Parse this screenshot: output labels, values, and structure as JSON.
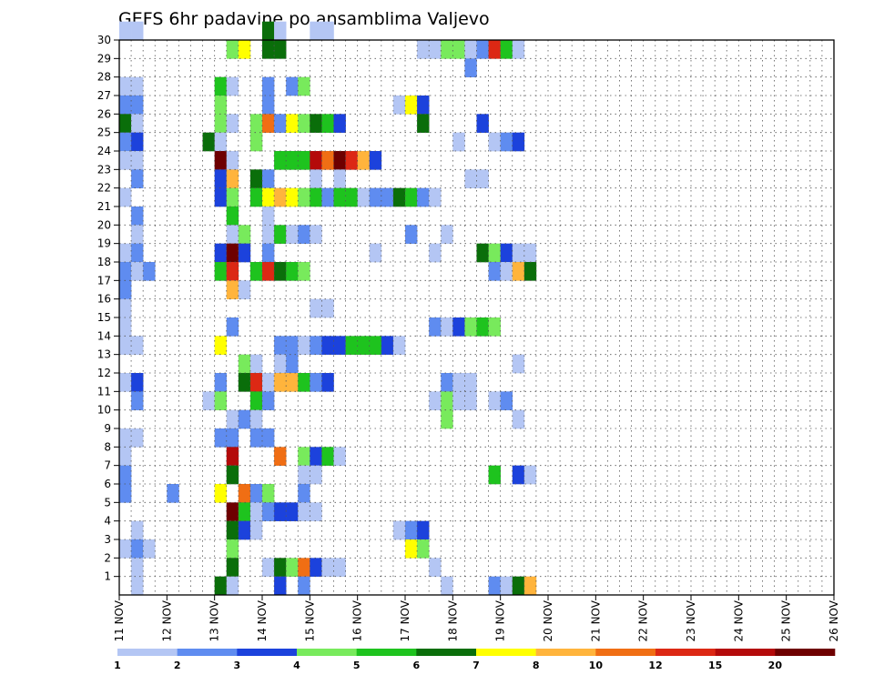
{
  "chart_data": {
    "type": "heatmap",
    "title": "GEFS 6hr padavine po ansamblima Valjevo",
    "xlabel": "",
    "ylabel": "",
    "x_tick_labels": [
      "11 NOV",
      "12 NOV",
      "13 NOV",
      "14 NOV",
      "15 NOV",
      "16 NOV",
      "17 NOV",
      "18 NOV",
      "19 NOV",
      "20 NOV",
      "21 NOV",
      "22 NOV",
      "23 NOV",
      "24 NOV",
      "25 NOV",
      "26 NOV"
    ],
    "y_tick_labels": [
      "1",
      "2",
      "3",
      "4",
      "5",
      "6",
      "7",
      "8",
      "9",
      "10",
      "11",
      "12",
      "13",
      "14",
      "15",
      "16",
      "17",
      "18",
      "19",
      "20",
      "21",
      "22",
      "23",
      "24",
      "25",
      "26",
      "27",
      "28",
      "29",
      "30"
    ],
    "ylim": [
      0,
      30
    ],
    "time_step": "6hr",
    "grid": true,
    "colorbar": {
      "levels": [
        "1",
        "2",
        "3",
        "4",
        "5",
        "6",
        "7",
        "8",
        "10",
        "12",
        "15",
        "20"
      ],
      "colors": [
        "#b4c6f4",
        "#5f8cf0",
        "#1c42dc",
        "#78ea5c",
        "#1ec31e",
        "#0a6e0a",
        "#ffff00",
        "#ffb43c",
        "#f06e14",
        "#dc2814",
        "#b40a0a",
        "#6e0000"
      ]
    },
    "cells": [
      {
        "m": 30,
        "t": [
          [
            0,
            1
          ],
          [
            1,
            1
          ],
          [
            12,
            6
          ],
          [
            13,
            1
          ],
          [
            16,
            1
          ],
          [
            17,
            1
          ]
        ]
      },
      {
        "m": 29,
        "t": [
          [
            9,
            4
          ],
          [
            10,
            7
          ],
          [
            12,
            6
          ],
          [
            13,
            6
          ],
          [
            25,
            1
          ],
          [
            26,
            1
          ],
          [
            27,
            4
          ],
          [
            28,
            4
          ],
          [
            29,
            1
          ],
          [
            30,
            2
          ],
          [
            31,
            10
          ],
          [
            32,
            5
          ],
          [
            33,
            1
          ]
        ]
      },
      {
        "m": 28,
        "t": [
          [
            29,
            2
          ]
        ]
      },
      {
        "m": 27,
        "t": [
          [
            0,
            1
          ],
          [
            1,
            1
          ],
          [
            8,
            5
          ],
          [
            9,
            1
          ],
          [
            12,
            2
          ],
          [
            14,
            2
          ],
          [
            15,
            4
          ]
        ]
      },
      {
        "m": 26,
        "t": [
          [
            0,
            2
          ],
          [
            1,
            2
          ],
          [
            8,
            4
          ],
          [
            12,
            2
          ],
          [
            23,
            1
          ],
          [
            24,
            7
          ],
          [
            25,
            3
          ]
        ]
      },
      {
        "m": 25,
        "t": [
          [
            0,
            6
          ],
          [
            1,
            1
          ],
          [
            8,
            4
          ],
          [
            9,
            1
          ],
          [
            11,
            4
          ],
          [
            12,
            9
          ],
          [
            13,
            2
          ],
          [
            14,
            7
          ],
          [
            15,
            4
          ],
          [
            16,
            6
          ],
          [
            17,
            5
          ],
          [
            18,
            3
          ],
          [
            25,
            6
          ],
          [
            30,
            3
          ]
        ]
      },
      {
        "m": 24,
        "t": [
          [
            0,
            2
          ],
          [
            1,
            3
          ],
          [
            7,
            6
          ],
          [
            8,
            1
          ],
          [
            11,
            4
          ],
          [
            28,
            1
          ],
          [
            31,
            1
          ],
          [
            32,
            2
          ],
          [
            33,
            3
          ]
        ]
      },
      {
        "m": 23,
        "t": [
          [
            0,
            1
          ],
          [
            1,
            1
          ],
          [
            8,
            12
          ],
          [
            9,
            1
          ],
          [
            13,
            5
          ],
          [
            14,
            5
          ],
          [
            15,
            5
          ],
          [
            16,
            11
          ],
          [
            17,
            9
          ],
          [
            18,
            12
          ],
          [
            19,
            10
          ],
          [
            20,
            8
          ],
          [
            21,
            3
          ]
        ]
      },
      {
        "m": 22,
        "t": [
          [
            1,
            2
          ],
          [
            8,
            3
          ],
          [
            9,
            8
          ],
          [
            11,
            6
          ],
          [
            12,
            2
          ],
          [
            16,
            1
          ],
          [
            18,
            1
          ],
          [
            29,
            1
          ],
          [
            30,
            1
          ]
        ]
      },
      {
        "m": 21,
        "t": [
          [
            0,
            1
          ],
          [
            8,
            3
          ],
          [
            9,
            4
          ],
          [
            11,
            5
          ],
          [
            12,
            7
          ],
          [
            13,
            8
          ],
          [
            14,
            7
          ],
          [
            15,
            4
          ],
          [
            16,
            5
          ],
          [
            17,
            2
          ],
          [
            18,
            5
          ],
          [
            19,
            5
          ],
          [
            20,
            1
          ],
          [
            21,
            2
          ],
          [
            22,
            2
          ],
          [
            23,
            6
          ],
          [
            24,
            5
          ],
          [
            25,
            2
          ],
          [
            26,
            1
          ]
        ]
      },
      {
        "m": 20,
        "t": [
          [
            1,
            2
          ],
          [
            9,
            5
          ],
          [
            12,
            1
          ]
        ]
      },
      {
        "m": 19,
        "t": [
          [
            1,
            1
          ],
          [
            9,
            1
          ],
          [
            10,
            4
          ],
          [
            12,
            1
          ],
          [
            13,
            5
          ],
          [
            14,
            1
          ],
          [
            15,
            2
          ],
          [
            16,
            1
          ],
          [
            24,
            2
          ],
          [
            27,
            1
          ]
        ]
      },
      {
        "m": 18,
        "t": [
          [
            0,
            1
          ],
          [
            1,
            2
          ],
          [
            8,
            3
          ],
          [
            9,
            12
          ],
          [
            10,
            3
          ],
          [
            12,
            2
          ],
          [
            21,
            1
          ],
          [
            26,
            1
          ],
          [
            30,
            6
          ],
          [
            31,
            4
          ],
          [
            32,
            3
          ],
          [
            33,
            1
          ],
          [
            34,
            1
          ]
        ]
      },
      {
        "m": 17,
        "t": [
          [
            0,
            2
          ],
          [
            1,
            1
          ],
          [
            2,
            2
          ],
          [
            8,
            5
          ],
          [
            9,
            10
          ],
          [
            11,
            5
          ],
          [
            12,
            10
          ],
          [
            13,
            6
          ],
          [
            14,
            5
          ],
          [
            15,
            4
          ],
          [
            31,
            2
          ],
          [
            32,
            1
          ],
          [
            33,
            8
          ],
          [
            34,
            6
          ]
        ]
      },
      {
        "m": 16,
        "t": [
          [
            0,
            2
          ],
          [
            9,
            8
          ],
          [
            10,
            1
          ]
        ]
      },
      {
        "m": 15,
        "t": [
          [
            0,
            1
          ],
          [
            16,
            1
          ],
          [
            17,
            1
          ]
        ]
      },
      {
        "m": 14,
        "t": [
          [
            0,
            1
          ],
          [
            9,
            2
          ],
          [
            26,
            2
          ],
          [
            27,
            1
          ],
          [
            28,
            3
          ],
          [
            29,
            4
          ],
          [
            30,
            5
          ],
          [
            31,
            4
          ]
        ]
      },
      {
        "m": 13,
        "t": [
          [
            0,
            1
          ],
          [
            1,
            1
          ],
          [
            8,
            7
          ],
          [
            13,
            2
          ],
          [
            14,
            2
          ],
          [
            15,
            1
          ],
          [
            16,
            2
          ],
          [
            17,
            3
          ],
          [
            18,
            3
          ],
          [
            19,
            5
          ],
          [
            20,
            5
          ],
          [
            21,
            5
          ],
          [
            22,
            3
          ],
          [
            23,
            1
          ]
        ]
      },
      {
        "m": 12,
        "t": [
          [
            10,
            4
          ],
          [
            11,
            1
          ],
          [
            13,
            1
          ],
          [
            14,
            2
          ],
          [
            33,
            1
          ]
        ]
      },
      {
        "m": 11,
        "t": [
          [
            0,
            1
          ],
          [
            1,
            3
          ],
          [
            8,
            2
          ],
          [
            10,
            6
          ],
          [
            11,
            10
          ],
          [
            12,
            1
          ],
          [
            13,
            8
          ],
          [
            14,
            8
          ],
          [
            15,
            5
          ],
          [
            16,
            2
          ],
          [
            17,
            3
          ],
          [
            27,
            2
          ],
          [
            28,
            1
          ],
          [
            29,
            1
          ]
        ]
      },
      {
        "m": 10,
        "t": [
          [
            1,
            2
          ],
          [
            7,
            1
          ],
          [
            8,
            4
          ],
          [
            11,
            5
          ],
          [
            12,
            2
          ],
          [
            26,
            1
          ],
          [
            27,
            4
          ],
          [
            28,
            1
          ],
          [
            29,
            1
          ],
          [
            31,
            1
          ],
          [
            32,
            2
          ]
        ]
      },
      {
        "m": 9,
        "t": [
          [
            9,
            1
          ],
          [
            10,
            2
          ],
          [
            11,
            1
          ],
          [
            27,
            4
          ],
          [
            33,
            1
          ]
        ]
      },
      {
        "m": 8,
        "t": [
          [
            0,
            1
          ],
          [
            1,
            1
          ],
          [
            8,
            2
          ],
          [
            9,
            2
          ],
          [
            11,
            2
          ],
          [
            12,
            2
          ]
        ]
      },
      {
        "m": 7,
        "t": [
          [
            0,
            1
          ],
          [
            9,
            11
          ],
          [
            13,
            9
          ],
          [
            15,
            4
          ],
          [
            16,
            3
          ],
          [
            17,
            5
          ],
          [
            18,
            1
          ]
        ]
      },
      {
        "m": 6,
        "t": [
          [
            0,
            2
          ],
          [
            9,
            6
          ],
          [
            15,
            1
          ],
          [
            16,
            1
          ],
          [
            31,
            5
          ],
          [
            33,
            3
          ],
          [
            34,
            1
          ]
        ]
      },
      {
        "m": 5,
        "t": [
          [
            0,
            2
          ],
          [
            4,
            2
          ],
          [
            8,
            7
          ],
          [
            10,
            9
          ],
          [
            11,
            2
          ],
          [
            12,
            4
          ],
          [
            15,
            2
          ]
        ]
      },
      {
        "m": 4,
        "t": [
          [
            9,
            12
          ],
          [
            10,
            5
          ],
          [
            11,
            1
          ],
          [
            12,
            2
          ],
          [
            13,
            3
          ],
          [
            14,
            3
          ],
          [
            15,
            1
          ],
          [
            16,
            1
          ]
        ]
      },
      {
        "m": 3,
        "t": [
          [
            1,
            1
          ],
          [
            9,
            6
          ],
          [
            10,
            3
          ],
          [
            11,
            1
          ],
          [
            23,
            1
          ],
          [
            24,
            2
          ],
          [
            25,
            3
          ]
        ]
      },
      {
        "m": 2,
        "t": [
          [
            0,
            1
          ],
          [
            1,
            2
          ],
          [
            2,
            1
          ],
          [
            9,
            4
          ],
          [
            24,
            7
          ],
          [
            25,
            4
          ]
        ]
      },
      {
        "m": 1,
        "t": [
          [
            1,
            1
          ],
          [
            9,
            6
          ],
          [
            12,
            1
          ],
          [
            13,
            6
          ],
          [
            14,
            4
          ],
          [
            15,
            9
          ],
          [
            16,
            3
          ],
          [
            17,
            1
          ],
          [
            18,
            1
          ],
          [
            26,
            1
          ]
        ]
      },
      {
        "m": 0,
        "t": [
          [
            1,
            1
          ],
          [
            8,
            6
          ],
          [
            9,
            1
          ],
          [
            13,
            3
          ],
          [
            15,
            2
          ],
          [
            27,
            1
          ],
          [
            31,
            2
          ],
          [
            32,
            1
          ],
          [
            33,
            6
          ],
          [
            34,
            8
          ]
        ]
      }
    ]
  }
}
